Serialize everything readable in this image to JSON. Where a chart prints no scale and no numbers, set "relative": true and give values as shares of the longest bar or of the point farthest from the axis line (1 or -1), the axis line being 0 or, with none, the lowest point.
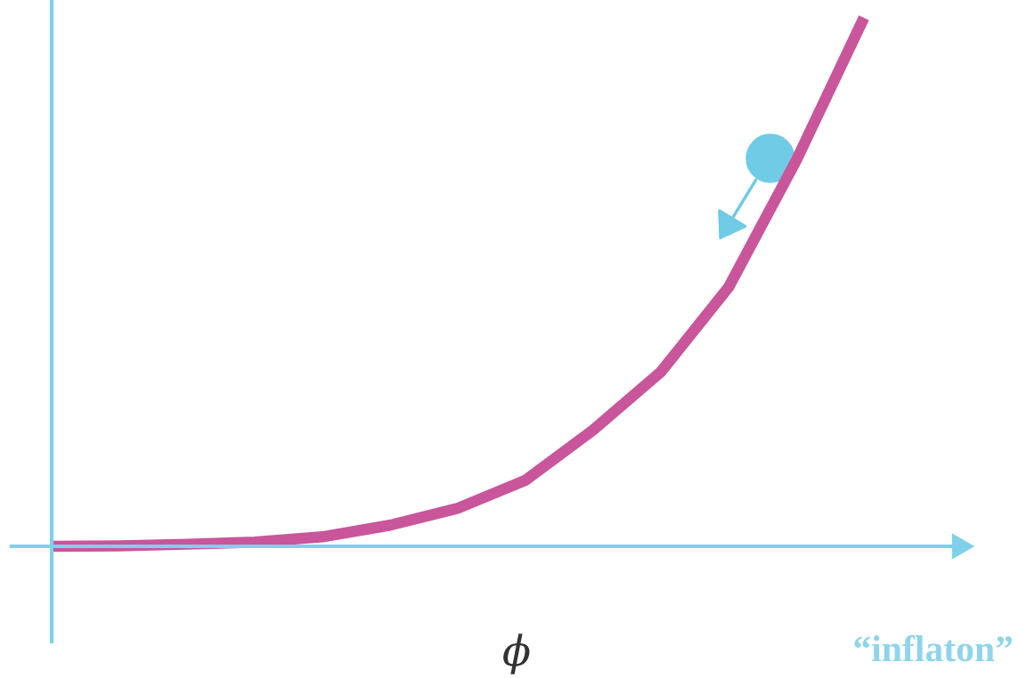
{
  "chart_data": {
    "type": "line",
    "relative": true,
    "xlabel": "ϕ",
    "annotations": [
      "“inflaton”"
    ],
    "categories": [
      null,
      null,
      null,
      null,
      null,
      null,
      null,
      null,
      null,
      null,
      null,
      null,
      null
    ],
    "series": [
      {
        "color": "#c9559b",
        "values": [
          0,
          0.001,
          0.004,
          0.008,
          0.018,
          0.04,
          0.072,
          0.125,
          0.22,
          0.33,
          0.49,
          0.73,
          1
        ]
      }
    ],
    "legend": false,
    "marker": "none",
    "line_style": "solid"
  }
}
